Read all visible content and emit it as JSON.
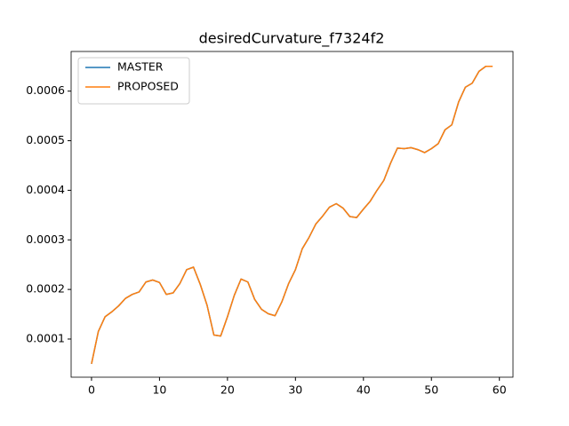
{
  "chart_data": {
    "type": "line",
    "title": "desiredCurvature_f7324f2",
    "x": [
      0,
      1,
      2,
      3,
      4,
      5,
      6,
      7,
      8,
      9,
      10,
      11,
      12,
      13,
      14,
      15,
      16,
      17,
      18,
      19,
      20,
      21,
      22,
      23,
      24,
      25,
      26,
      27,
      28,
      29,
      30,
      31,
      32,
      33,
      34,
      35,
      36,
      37,
      38,
      39,
      40,
      41,
      42,
      43,
      44,
      45,
      46,
      47,
      48,
      49,
      50,
      51,
      52,
      53,
      54,
      55,
      56,
      57,
      58,
      59
    ],
    "series": [
      {
        "name": "MASTER",
        "color": "#1f77b4",
        "values": [
          5e-05,
          0.000115,
          0.000145,
          0.000155,
          0.000167,
          0.000182,
          0.00019,
          0.000195,
          0.000215,
          0.000219,
          0.000214,
          0.00019,
          0.000193,
          0.000212,
          0.00024,
          0.000245,
          0.00021,
          0.000168,
          0.000108,
          0.000106,
          0.000145,
          0.000188,
          0.000221,
          0.000215,
          0.00018,
          0.00016,
          0.000151,
          0.000147,
          0.000175,
          0.000212,
          0.00024,
          0.000282,
          0.000305,
          0.000332,
          0.000348,
          0.000366,
          0.000373,
          0.000364,
          0.000347,
          0.000345,
          0.000362,
          0.000378,
          0.0004,
          0.00042,
          0.000455,
          0.000485,
          0.000484,
          0.000486,
          0.000482,
          0.000476,
          0.000484,
          0.000494,
          0.000522,
          0.000532,
          0.000578,
          0.000608,
          0.000616,
          0.00064,
          0.00065,
          0.00065
        ]
      },
      {
        "name": "PROPOSED",
        "color": "#ff7f0e",
        "values": [
          5e-05,
          0.000115,
          0.000145,
          0.000155,
          0.000167,
          0.000182,
          0.00019,
          0.000195,
          0.000215,
          0.000219,
          0.000214,
          0.00019,
          0.000193,
          0.000212,
          0.00024,
          0.000245,
          0.00021,
          0.000168,
          0.000108,
          0.000106,
          0.000145,
          0.000188,
          0.000221,
          0.000215,
          0.00018,
          0.00016,
          0.000151,
          0.000147,
          0.000175,
          0.000212,
          0.00024,
          0.000282,
          0.000305,
          0.000332,
          0.000348,
          0.000366,
          0.000373,
          0.000364,
          0.000347,
          0.000345,
          0.000362,
          0.000378,
          0.0004,
          0.00042,
          0.000455,
          0.000485,
          0.000484,
          0.000486,
          0.000482,
          0.000476,
          0.000484,
          0.000494,
          0.000522,
          0.000532,
          0.000578,
          0.000608,
          0.000616,
          0.00064,
          0.00065,
          0.00065
        ]
      }
    ],
    "xlim": [
      -3,
      62
    ],
    "xticks": [
      0,
      10,
      20,
      30,
      40,
      50,
      60
    ],
    "ylim": [
      2.3e-05,
      0.00068
    ],
    "yticks": [
      0.0001,
      0.0002,
      0.0003,
      0.0004,
      0.0005,
      0.0006
    ],
    "legend": "upper left"
  }
}
